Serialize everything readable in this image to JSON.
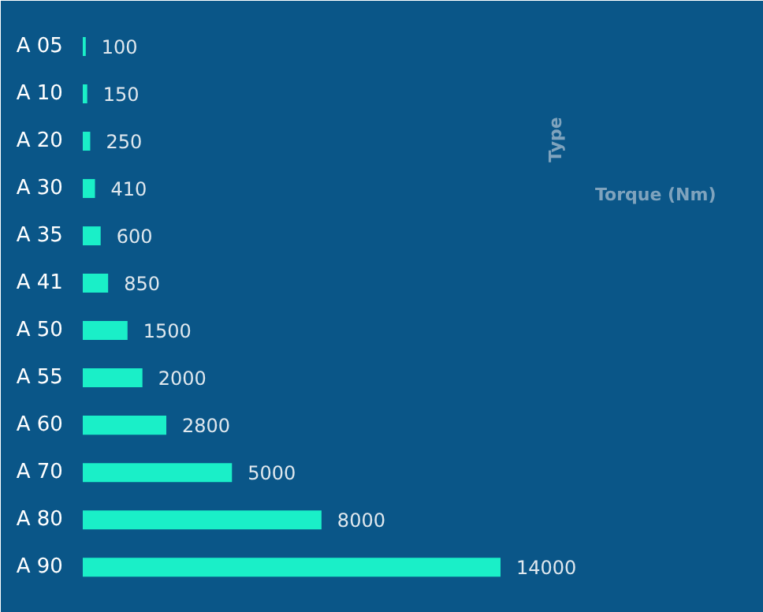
{
  "chart_data": {
    "type": "bar",
    "orientation": "horizontal",
    "annotations": [
      "Type",
      "Torque (Nm)"
    ],
    "categories": [
      "A 05",
      "A 10",
      "A 20",
      "A 30",
      "A 35",
      "A 41",
      "A 50",
      "A 55",
      "A 60",
      "A 70",
      "A 80",
      "A 90"
    ],
    "values": [
      100,
      150,
      250,
      410,
      600,
      850,
      1500,
      2000,
      2800,
      5000,
      8000,
      14000
    ],
    "color": "#1aefc8",
    "data_labels": true
  }
}
